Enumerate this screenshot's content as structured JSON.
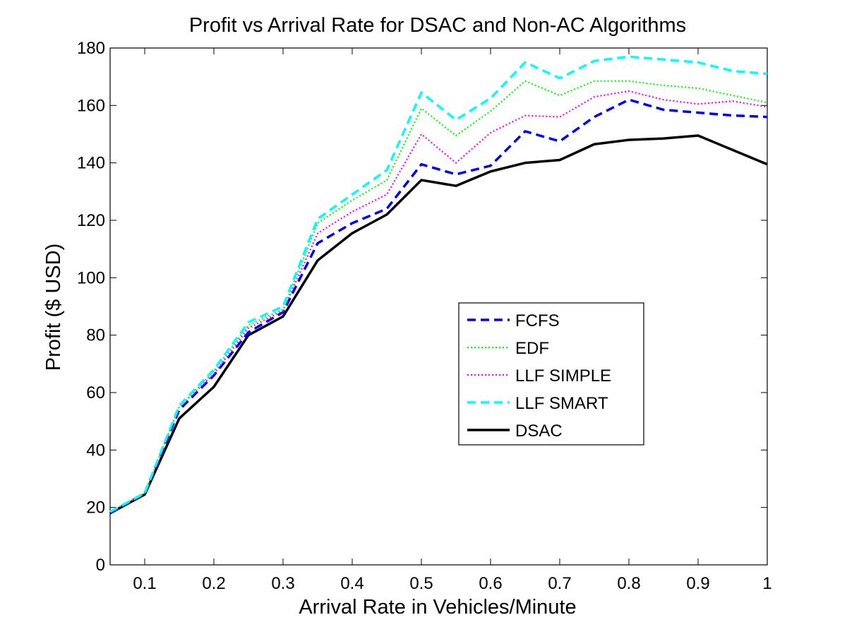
{
  "chart_data": {
    "type": "line",
    "title": "Profit vs Arrival Rate for DSAC and Non-AC Algorithms",
    "xlabel": "Arrival Rate in Vehicles/Minute",
    "ylabel": "Profit ($ USD)",
    "xlim": [
      0.05,
      1.0
    ],
    "ylim": [
      0,
      180
    ],
    "grid": false,
    "legend_position": "center-right",
    "x": [
      0.05,
      0.1,
      0.15,
      0.2,
      0.25,
      0.3,
      0.35,
      0.4,
      0.45,
      0.5,
      0.55,
      0.6,
      0.65,
      0.7,
      0.75,
      0.8,
      0.85,
      0.9,
      0.95,
      1.0
    ],
    "x_ticks": [
      0.1,
      0.2,
      0.3,
      0.4,
      0.5,
      0.6,
      0.7,
      0.8,
      0.9,
      1
    ],
    "x_tick_labels": [
      "0.1",
      "0.2",
      "0.3",
      "0.4",
      "0.5",
      "0.6",
      "0.7",
      "0.8",
      "0.9",
      "1"
    ],
    "y_ticks": [
      0,
      20,
      40,
      60,
      80,
      100,
      120,
      140,
      160,
      180
    ],
    "y_tick_labels": [
      "0",
      "20",
      "40",
      "60",
      "80",
      "100",
      "120",
      "140",
      "160",
      "180"
    ],
    "series": [
      {
        "name": "FCFS",
        "color": "#0000ff",
        "style": "dashed",
        "values": [
          18,
          25,
          54,
          66,
          81,
          88,
          112,
          119,
          124,
          139.5,
          136,
          139,
          151,
          147.5,
          156,
          162,
          158.5,
          157.5,
          156.5,
          156
        ]
      },
      {
        "name": "EDF",
        "color": "#00ff00",
        "style": "dotted",
        "values": [
          18.5,
          25,
          55,
          67.5,
          83.5,
          89,
          119,
          127,
          134,
          159,
          149.5,
          158,
          168.5,
          163.5,
          168.5,
          168.5,
          167,
          166,
          163.5,
          161
        ]
      },
      {
        "name": "LLF SIMPLE",
        "color": "#ff00ff",
        "style": "dotted",
        "values": [
          18.5,
          25,
          55,
          66.5,
          82.5,
          88.5,
          115.5,
          123,
          129,
          150,
          140,
          150.5,
          156.5,
          156,
          163,
          165,
          162,
          160.5,
          161.5,
          159.5
        ]
      },
      {
        "name": "LLF SMART",
        "color": "#00ffff",
        "style": "dashed",
        "values": [
          18.5,
          25,
          55.5,
          68,
          84.5,
          90,
          120.5,
          129,
          137.5,
          164.5,
          155,
          162.5,
          175,
          169.5,
          175.5,
          177,
          176,
          175,
          172,
          171
        ]
      },
      {
        "name": "DSAC",
        "color": "#000000",
        "style": "solid",
        "values": [
          18,
          24.5,
          51,
          62,
          80,
          86.5,
          106,
          115.5,
          122,
          134,
          132,
          137,
          140,
          141,
          146.5,
          148,
          148.5,
          149.5,
          144.5,
          139.5
        ]
      }
    ]
  }
}
